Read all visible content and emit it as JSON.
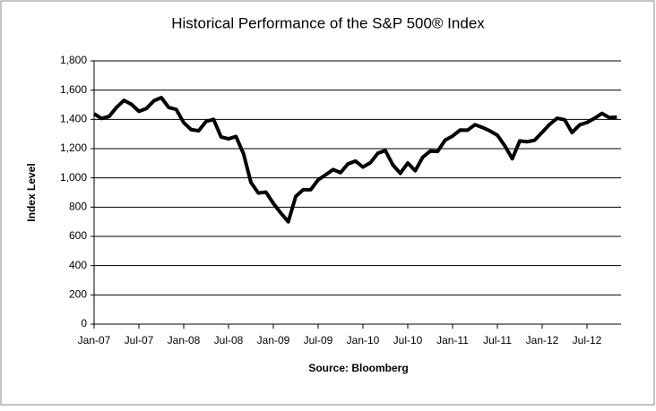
{
  "chart_data": {
    "type": "line",
    "title": "Historical Performance of the S&P 500® Index",
    "ylabel": "Index Level",
    "xlabel": "Source: Bloomberg",
    "categories": [
      "Jan-07",
      null,
      null,
      null,
      null,
      null,
      "Jul-07",
      null,
      null,
      null,
      null,
      null,
      "Jan-08",
      null,
      null,
      null,
      null,
      null,
      "Jul-08",
      null,
      null,
      null,
      null,
      null,
      "Jan-09",
      null,
      null,
      null,
      null,
      null,
      "Jul-09",
      null,
      null,
      null,
      null,
      null,
      "Jan-10",
      null,
      null,
      null,
      null,
      null,
      "Jul-10",
      null,
      null,
      null,
      null,
      null,
      "Jan-11",
      null,
      null,
      null,
      null,
      null,
      "Jul-11",
      null,
      null,
      null,
      null,
      null,
      "Jan-12",
      null,
      null,
      null,
      null,
      null,
      "Jul-12",
      null,
      null,
      null,
      null
    ],
    "series": [
      {
        "name": "S&P 500",
        "color": "#000000",
        "values": [
          1438,
          1406,
          1420,
          1482,
          1530,
          1503,
          1455,
          1474,
          1527,
          1549,
          1481,
          1468,
          1378,
          1330,
          1322,
          1386,
          1400,
          1280,
          1267,
          1283,
          1166,
          969,
          896,
          903,
          826,
          760,
          700,
          873,
          919,
          919,
          987,
          1021,
          1057,
          1036,
          1096,
          1115,
          1074,
          1104,
          1169,
          1187,
          1089,
          1031,
          1102,
          1049,
          1141,
          1183,
          1181,
          1258,
          1286,
          1327,
          1326,
          1364,
          1345,
          1321,
          1292,
          1219,
          1131,
          1253,
          1247,
          1258,
          1312,
          1366,
          1408,
          1398,
          1310,
          1362,
          1379,
          1407,
          1441,
          1412,
          1416
        ]
      }
    ],
    "ylim": [
      0,
      1800
    ],
    "yticks": [
      0,
      200,
      400,
      600,
      800,
      {
        "value": 1000,
        "label": "1,000"
      },
      {
        "value": 1200,
        "label": "1,200"
      },
      {
        "value": 1400,
        "label": "1,400"
      },
      {
        "value": 1600,
        "label": "1,600"
      },
      {
        "value": 1800,
        "label": "1,800"
      }
    ],
    "grid": true
  }
}
